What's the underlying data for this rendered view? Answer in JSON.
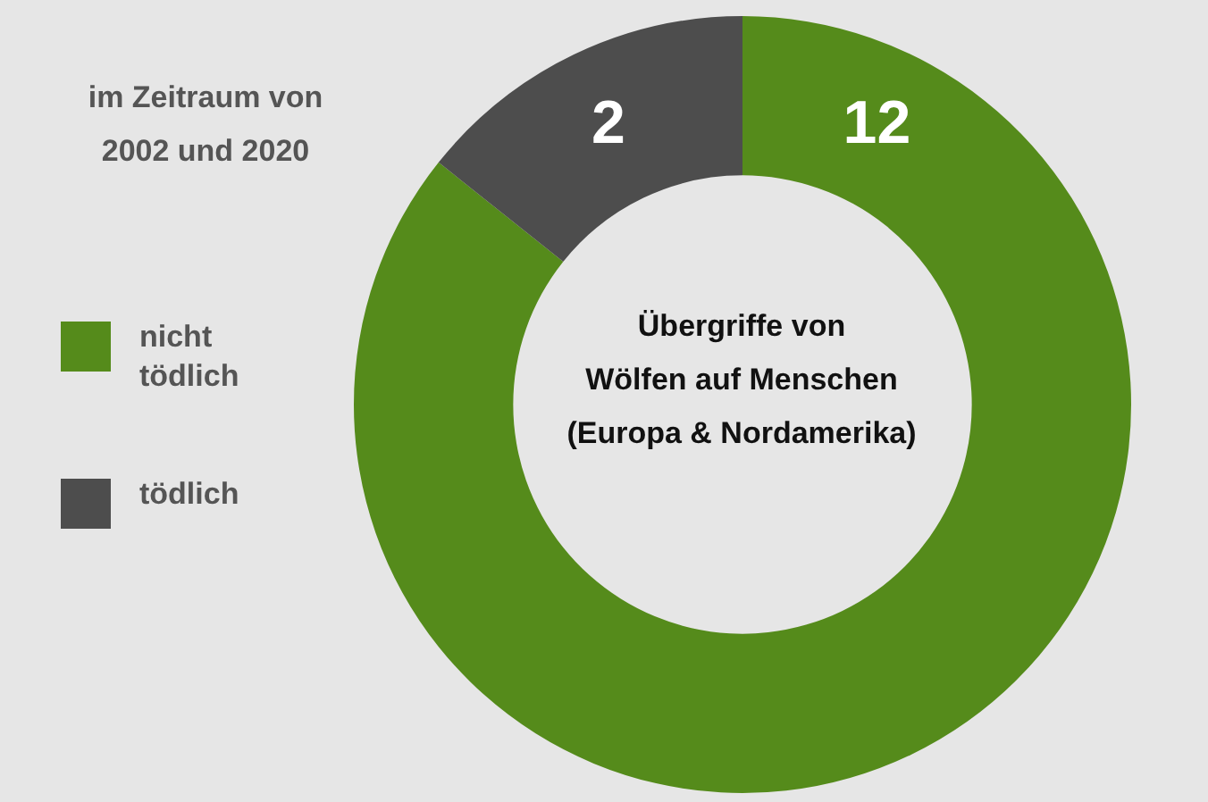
{
  "chart_data": {
    "type": "donut",
    "title": "Übergriffe von\nWölfen auf Menschen\n(Europa & Nordamerika)",
    "subtitle": "im Zeitraum von\n2002 und 2020",
    "categories": [
      "nicht tödlich",
      "tödlich"
    ],
    "values": [
      12,
      2
    ],
    "colors": [
      "#558b1b",
      "#4d4d4d"
    ],
    "data_labels": true,
    "legend": "left"
  }
}
